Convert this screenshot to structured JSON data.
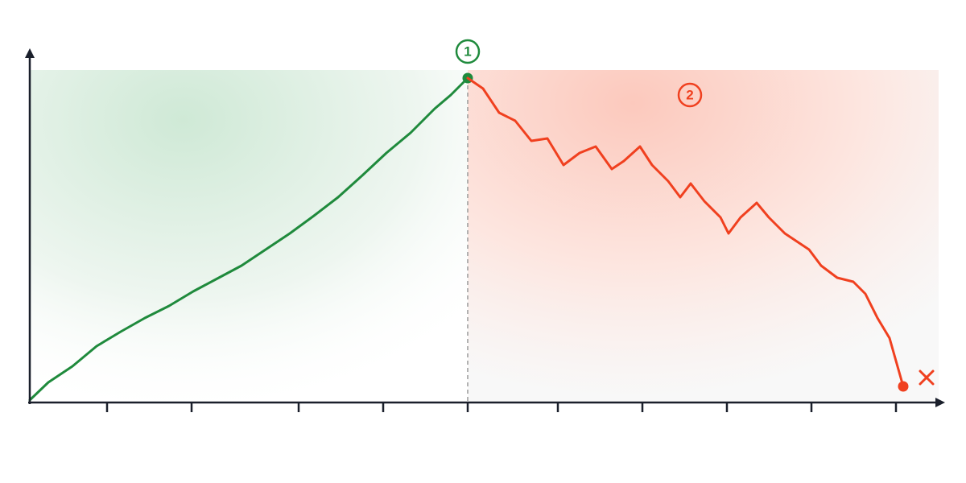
{
  "chart_data": {
    "type": "line",
    "annotations": [
      "1",
      "2"
    ],
    "x": [
      0,
      2.3,
      5.3,
      8.3,
      11.3,
      14.3,
      17.3,
      20.3,
      23.3,
      26.3,
      29.3,
      32.3,
      35.3,
      38.3,
      41.3,
      44.3,
      47.3,
      50.3,
      52.3,
      54.4,
      56.3,
      58.3,
      60.3,
      62.3,
      64.3,
      66.3,
      68.3,
      70.3,
      72.3,
      73.8,
      75.8,
      77.3,
      79.3,
      80.8,
      82.1,
      83.8,
      85.8,
      86.8,
      88.3,
      90.3,
      91.8,
      93.8,
      95.3,
      96.8,
      98.3,
      100.3,
      102.3,
      103.8,
      105.3,
      106.8,
      108.5
    ],
    "series": [
      {
        "color": "#1f8a3c",
        "values": [
          0.3,
          2.5,
          4.5,
          7,
          8.8,
          10.5,
          12,
          13.8,
          15.4,
          17,
          19,
          21,
          23.2,
          25.5,
          28.2,
          31,
          33.5,
          36.5,
          38.2,
          40.3,
          null,
          null,
          null,
          null,
          null,
          null,
          null,
          null,
          null,
          null,
          null,
          null,
          null,
          null,
          null,
          null,
          null,
          null,
          null,
          null,
          null,
          null,
          null,
          null,
          null,
          null,
          null,
          null,
          null,
          null,
          null
        ]
      },
      {
        "color": "#f0401f",
        "values": [
          null,
          null,
          null,
          null,
          null,
          null,
          null,
          null,
          null,
          null,
          null,
          null,
          null,
          null,
          null,
          null,
          null,
          null,
          null,
          40.3,
          39,
          36,
          35,
          32.5,
          32.8,
          29.5,
          31,
          31.8,
          29,
          30,
          31.8,
          29.5,
          27.5,
          25.5,
          27.2,
          25,
          23,
          21,
          23,
          24.8,
          23,
          21,
          20,
          19,
          17,
          15.5,
          15,
          13.5,
          10.5,
          8,
          2.0
        ]
      }
    ],
    "xlim": [
      0,
      112
    ],
    "ylim": [
      0,
      44
    ],
    "xticks": [
      9.6,
      20.1,
      33.4,
      43.9,
      54.4,
      65.6,
      76.1,
      86.6,
      97.1,
      107.6
    ]
  }
}
